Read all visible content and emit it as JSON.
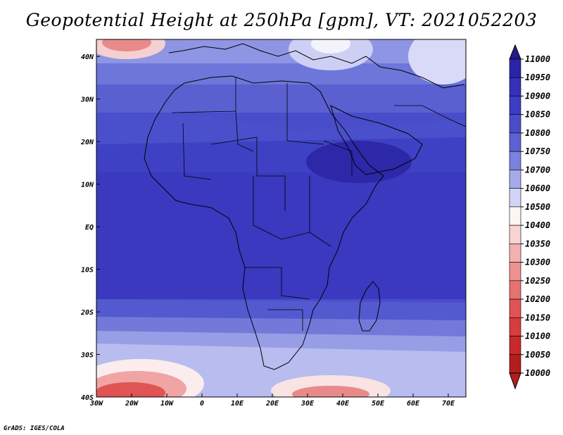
{
  "title": "Geopotential Height at 250hPa [gpm], VT: 2021052203",
  "credit": "GrADS: IGES/COLA",
  "lon_ticks": [
    "30W",
    "20W",
    "10W",
    "0",
    "10E",
    "20E",
    "30E",
    "40E",
    "50E",
    "60E",
    "70E"
  ],
  "lat_ticks": [
    "40N",
    "30N",
    "20N",
    "10N",
    "EQ",
    "10S",
    "20S",
    "30S",
    "40S"
  ],
  "lon_range": [
    -30,
    75
  ],
  "lat_range": [
    -40,
    44
  ],
  "colorbar": {
    "levels": [
      "11000",
      "10950",
      "10900",
      "10850",
      "10800",
      "10750",
      "10700",
      "10600",
      "10500",
      "10400",
      "10350",
      "10300",
      "10250",
      "10200",
      "10150",
      "10100",
      "10050",
      "10000"
    ],
    "colors": [
      "#241a8c",
      "#2b24a8",
      "#3530b8",
      "#3d3cc4",
      "#4a4dca",
      "#5c62d2",
      "#7a82de",
      "#a6aaeb",
      "#d2d4f6",
      "#fdf4f4",
      "#f8d4d4",
      "#f2b2b2",
      "#ec9292",
      "#e67272",
      "#e05454",
      "#d83c3c",
      "#c82a2a",
      "#b21e1e"
    ]
  }
}
